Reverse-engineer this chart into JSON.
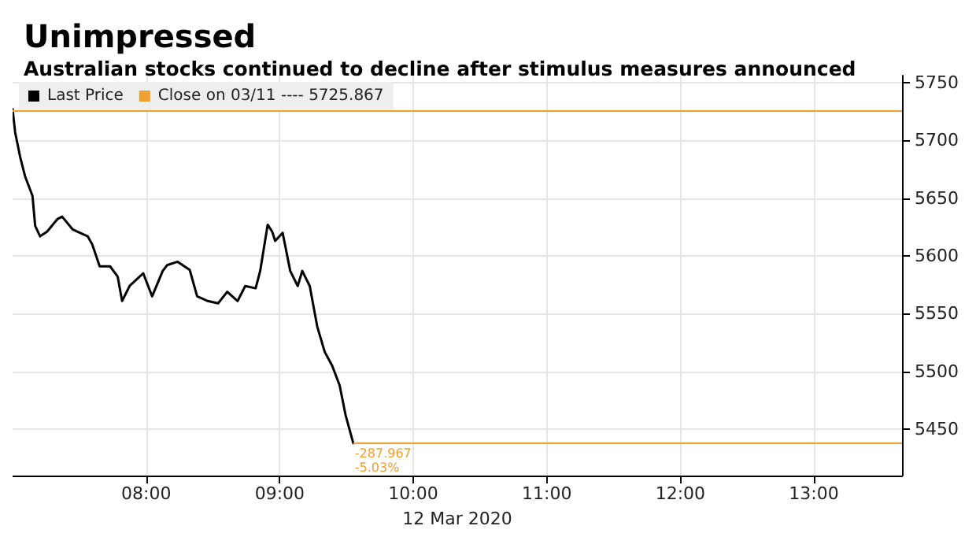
{
  "chart_data": {
    "type": "line",
    "title": "Unimpressed",
    "subtitle": "Australian stocks continued to decline after stimulus measures announced",
    "xlabel": "12 Mar 2020",
    "x": [
      7.0,
      7.019,
      7.056,
      7.093,
      7.149,
      7.169,
      7.206,
      7.258,
      7.337,
      7.371,
      7.449,
      7.562,
      7.596,
      7.652,
      7.73,
      7.787,
      7.82,
      7.876,
      7.978,
      8.045,
      8.124,
      8.157,
      8.236,
      8.326,
      8.382,
      8.461,
      8.539,
      8.607,
      8.685,
      8.742,
      8.82,
      8.854,
      8.91,
      8.944,
      8.966,
      9.022,
      9.079,
      9.135,
      9.169,
      9.225,
      9.281,
      9.337,
      9.393,
      9.449,
      9.494,
      9.551
    ],
    "series": [
      {
        "name": "Last Price",
        "color": "#000000",
        "values": [
          5727,
          5707,
          5686,
          5669,
          5652,
          5626,
          5617,
          5621,
          5632,
          5634,
          5623,
          5617,
          5610,
          5591,
          5591,
          5582,
          5561,
          5574,
          5585,
          5565,
          5587,
          5592,
          5595,
          5588,
          5565,
          5561,
          5559,
          5569,
          5561,
          5574,
          5572,
          5587,
          5627,
          5621,
          5613,
          5620,
          5587,
          5574,
          5587,
          5574,
          5539,
          5517,
          5505,
          5488,
          5462,
          5438
        ]
      }
    ],
    "xlim": [
      7.0,
      13.66
    ],
    "xticks": [
      {
        "value": 8,
        "label": "08:00"
      },
      {
        "value": 9,
        "label": "09:00"
      },
      {
        "value": 10,
        "label": "10:00"
      },
      {
        "value": 11,
        "label": "11:00"
      },
      {
        "value": 12,
        "label": "12:00"
      },
      {
        "value": 13,
        "label": "13:00"
      }
    ],
    "ylim": [
      5410,
      5756
    ],
    "yticks": [
      5450,
      5500,
      5550,
      5600,
      5650,
      5700,
      5750
    ],
    "ref_lines": [
      {
        "axis": "y",
        "value": 5725.867,
        "label": "Close on 03/11 ---- 5725.867",
        "color": "#f0a030"
      },
      {
        "axis": "y",
        "value": 5437.9,
        "color": "#f0a030"
      }
    ],
    "annotations": [
      {
        "text": "-287.967\n-5.03%",
        "x": 9.551,
        "y": 5437.9
      }
    ],
    "grid": true,
    "legend": "top left",
    "marker": "none",
    "line_style": "solid"
  }
}
